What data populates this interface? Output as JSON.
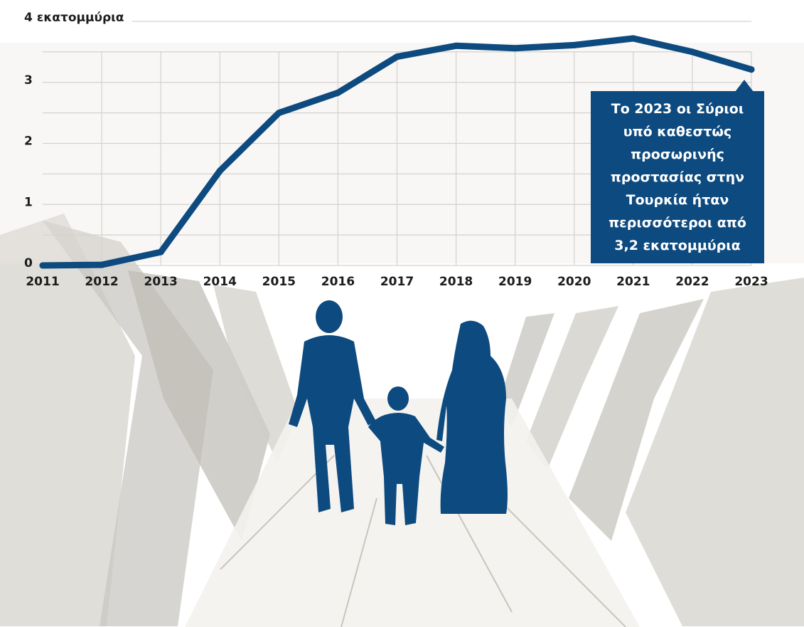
{
  "chart_data": {
    "type": "line",
    "title": "",
    "xlabel": "",
    "ylabel": "4 εκατομμύρια",
    "x": [
      "2011",
      "2012",
      "2013",
      "2014",
      "2015",
      "2016",
      "2017",
      "2018",
      "2019",
      "2020",
      "2021",
      "2022",
      "2023"
    ],
    "series": [
      {
        "values": [
          0.0,
          0.01,
          0.22,
          1.55,
          2.5,
          2.83,
          3.42,
          3.6,
          3.56,
          3.61,
          3.72,
          3.5,
          3.21
        ]
      }
    ],
    "yticks": [
      "0",
      "1",
      "2",
      "3"
    ],
    "ylim": [
      0,
      4
    ],
    "grid": true,
    "line_color": "#0d4a7f",
    "annotation": {
      "text": "Το 2023 οι Σύριοι υπό καθεστώς προσωρινής προστασίας στην Τουρκία ήταν περισσότεροι από 3,2 εκατομμύρια",
      "anchor_x": "2023"
    }
  },
  "colors": {
    "accent": "#0d4a7f",
    "grid": "#d4d2cc",
    "background_texture": "#e8e6e0"
  },
  "illustration": {
    "subject": "family-silhouette-icon",
    "background": "tents-icon"
  }
}
